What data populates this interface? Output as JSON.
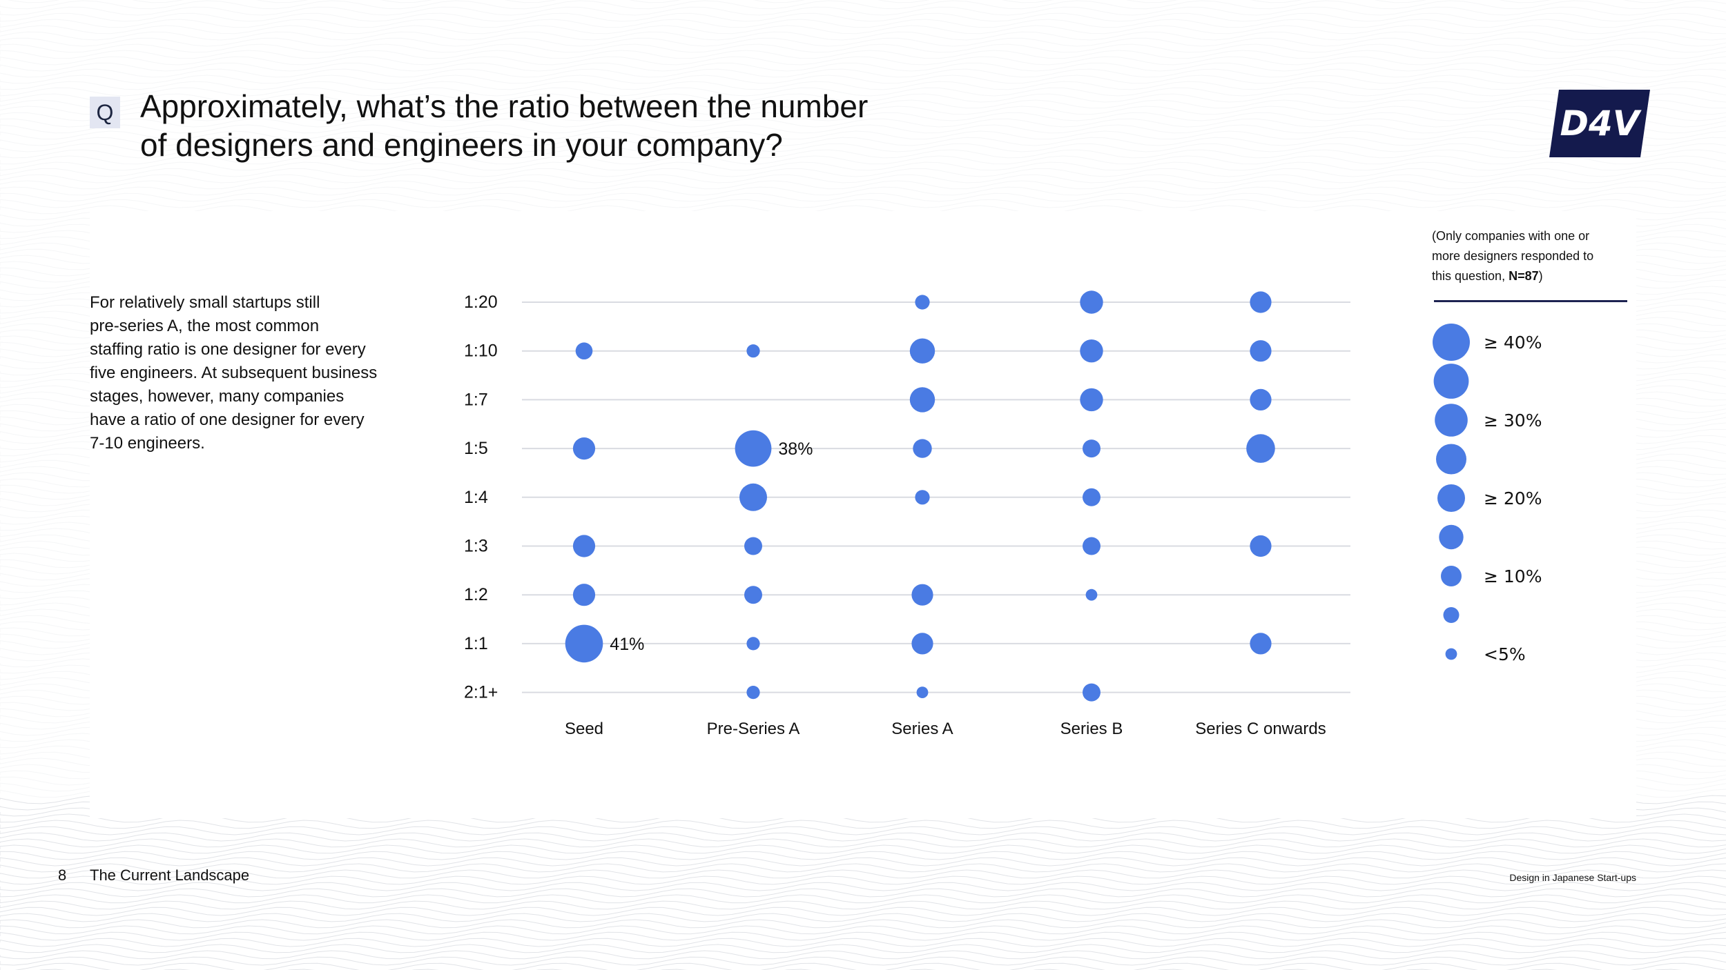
{
  "question_badge": "Q",
  "title": {
    "line1": "Approximately, what’s the ratio between the number",
    "line2": "of designers and engineers in your company?"
  },
  "logo_text": "D4V",
  "description": [
    "For relatively small startups still",
    "pre-series A, the most common",
    "staffing ratio is one designer for every",
    "five engineers. At subsequent business",
    "stages, however, many companies",
    "have a ratio of one designer for every",
    "7-10 engineers."
  ],
  "note": {
    "line1": "(Only companies with one or",
    "line2": "more designers responded to",
    "line3_prefix": "this question, ",
    "line3_bold": "N=87",
    "line3_suffix": ")"
  },
  "size_legend": [
    {
      "label": "≥ 40%",
      "value": 40
    },
    {
      "label": "",
      "value": 35
    },
    {
      "label": "≥ 30%",
      "value": 30
    },
    {
      "label": "",
      "value": 25
    },
    {
      "label": "≥ 20%",
      "value": 20
    },
    {
      "label": "",
      "value": 15
    },
    {
      "label": "≥ 10%",
      "value": 10
    },
    {
      "label": "",
      "value": 5
    },
    {
      "label": "<5%",
      "value": 2
    }
  ],
  "chart_data": {
    "type": "scatter",
    "title": "",
    "xlabel": "",
    "ylabel": "",
    "x_categories": [
      "Seed",
      "Pre-Series A",
      "Series A",
      "Series B",
      "Series C onwards"
    ],
    "y_categories": [
      "1:20",
      "1:10",
      "1:7",
      "1:5",
      "1:4",
      "1:3",
      "1:2",
      "1:1",
      "2:1+"
    ],
    "size_unit": "% of companies",
    "points": [
      {
        "x": "Seed",
        "y": "1:10",
        "value": 6
      },
      {
        "x": "Seed",
        "y": "1:5",
        "value": 12
      },
      {
        "x": "Seed",
        "y": "1:3",
        "value": 12
      },
      {
        "x": "Seed",
        "y": "1:2",
        "value": 12
      },
      {
        "x": "Seed",
        "y": "1:1",
        "value": 41,
        "label": "41%"
      },
      {
        "x": "Pre-Series A",
        "y": "1:10",
        "value": 3
      },
      {
        "x": "Pre-Series A",
        "y": "1:5",
        "value": 38,
        "label": "38%"
      },
      {
        "x": "Pre-Series A",
        "y": "1:4",
        "value": 20
      },
      {
        "x": "Pre-Series A",
        "y": "1:3",
        "value": 7
      },
      {
        "x": "Pre-Series A",
        "y": "1:2",
        "value": 7
      },
      {
        "x": "Pre-Series A",
        "y": "1:1",
        "value": 3
      },
      {
        "x": "Pre-Series A",
        "y": "2:1+",
        "value": 3
      },
      {
        "x": "Series A",
        "y": "1:20",
        "value": 4
      },
      {
        "x": "Series A",
        "y": "1:10",
        "value": 16
      },
      {
        "x": "Series A",
        "y": "1:7",
        "value": 16
      },
      {
        "x": "Series A",
        "y": "1:5",
        "value": 8
      },
      {
        "x": "Series A",
        "y": "1:4",
        "value": 4
      },
      {
        "x": "Series A",
        "y": "1:2",
        "value": 11
      },
      {
        "x": "Series A",
        "y": "1:1",
        "value": 11
      },
      {
        "x": "Series A",
        "y": "2:1+",
        "value": 2
      },
      {
        "x": "Series B",
        "y": "1:20",
        "value": 13
      },
      {
        "x": "Series B",
        "y": "1:10",
        "value": 13
      },
      {
        "x": "Series B",
        "y": "1:7",
        "value": 13
      },
      {
        "x": "Series B",
        "y": "1:5",
        "value": 7
      },
      {
        "x": "Series B",
        "y": "1:4",
        "value": 7
      },
      {
        "x": "Series B",
        "y": "1:3",
        "value": 7
      },
      {
        "x": "Series B",
        "y": "1:2",
        "value": 2
      },
      {
        "x": "Series B",
        "y": "2:1+",
        "value": 7
      },
      {
        "x": "Series C onwards",
        "y": "1:20",
        "value": 11
      },
      {
        "x": "Series C onwards",
        "y": "1:10",
        "value": 11
      },
      {
        "x": "Series C onwards",
        "y": "1:7",
        "value": 11
      },
      {
        "x": "Series C onwards",
        "y": "1:5",
        "value": 22
      },
      {
        "x": "Series C onwards",
        "y": "1:3",
        "value": 11
      },
      {
        "x": "Series C onwards",
        "y": "1:1",
        "value": 11
      }
    ],
    "grid": true,
    "legend": "right"
  },
  "footer": {
    "page_number": "8",
    "section": "The Current Landscape",
    "document": "Design in Japanese Start-ups"
  },
  "colors": {
    "bubble": "#4a7be3",
    "gridline": "#d9dbe1",
    "logo_bg": "#141a4d",
    "badge_bg": "#e3e6f2"
  }
}
